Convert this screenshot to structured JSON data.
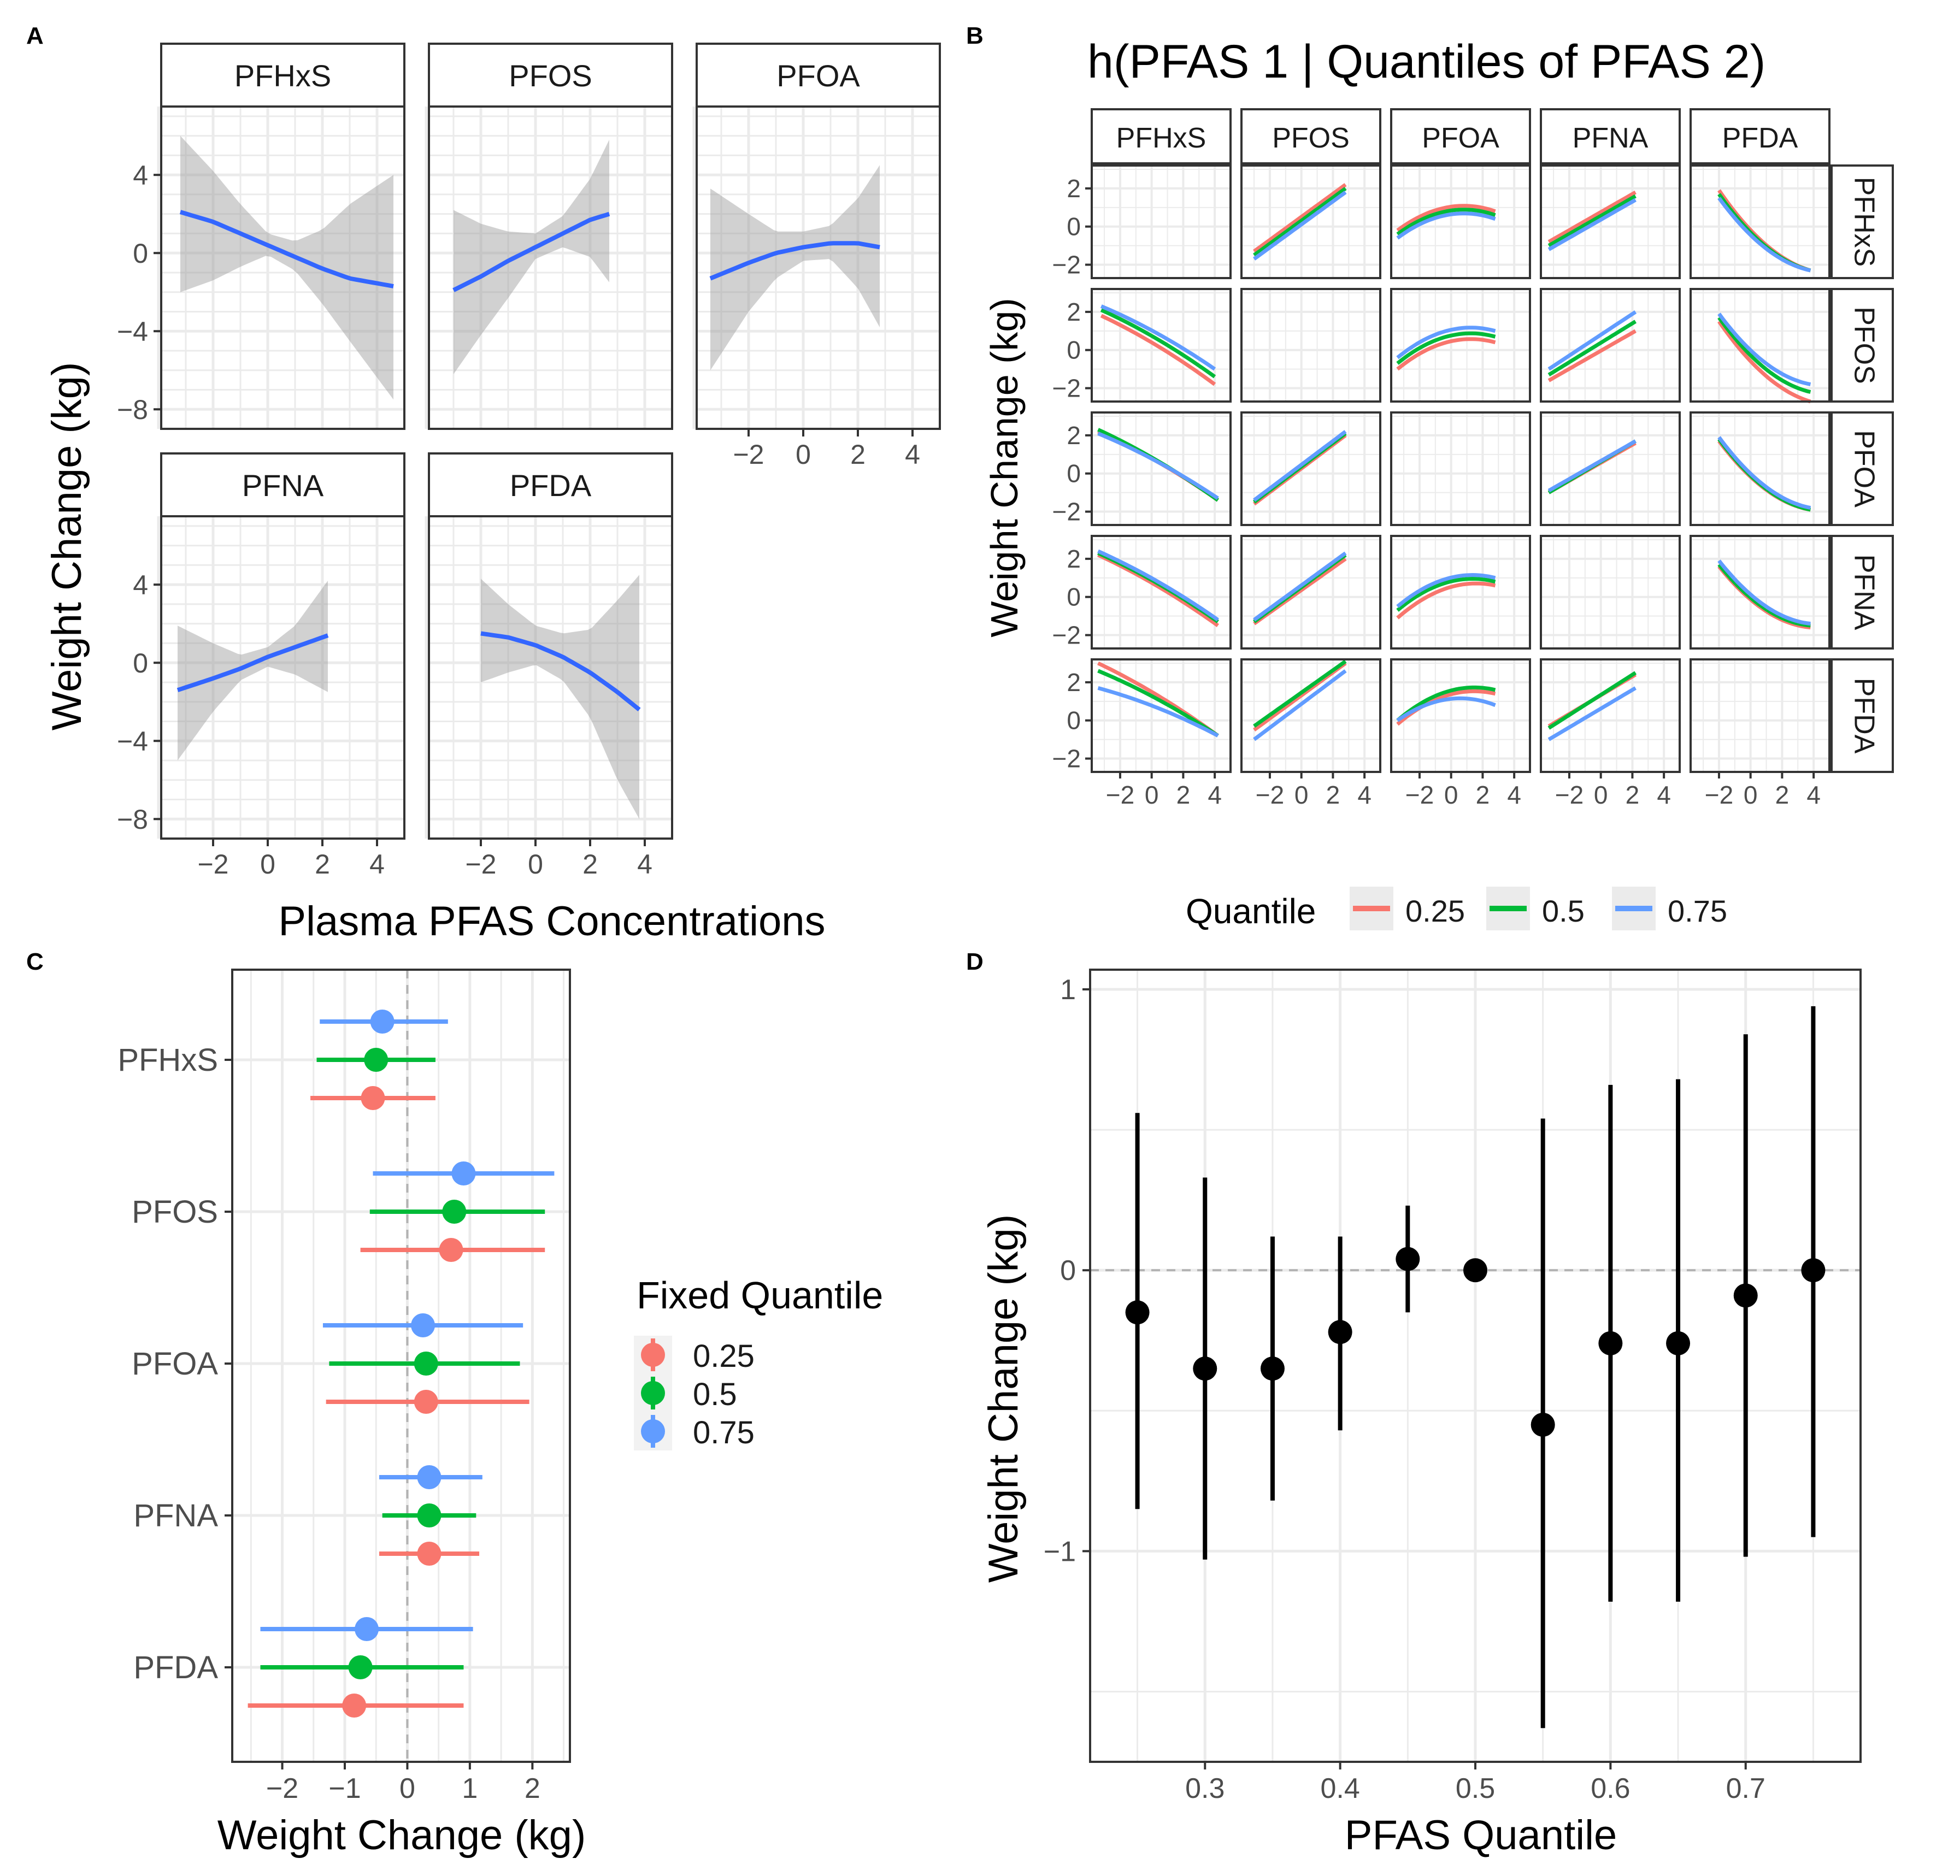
{
  "panel_labels": {
    "a": "A",
    "b": "B",
    "c": "C",
    "d": "D"
  },
  "colors": {
    "blue_line": "#3366ff",
    "ribbon": "#c4c4c4",
    "q25": "#f8766d",
    "q50": "#00ba38",
    "q75": "#619cff",
    "grid": "#ebebeb",
    "strip": "#ffffff"
  },
  "chart_data": [
    {
      "id": "A",
      "type": "line",
      "title": "",
      "xlabel": "Plasma PFAS Concentrations",
      "ylabel": "Weight Change (kg)",
      "ylim": [
        -9,
        7.5
      ],
      "xlim": [
        -3.9,
        5
      ],
      "yticks": [
        "4",
        "0",
        "−4",
        "−8"
      ],
      "xticks": [
        "−2",
        "0",
        "2",
        "4"
      ],
      "facets": [
        {
          "name": "PFHxS",
          "x": [
            -3.2,
            -2,
            -1,
            0,
            1,
            2,
            3,
            4.6
          ],
          "y": [
            2.1,
            1.6,
            1.0,
            0.4,
            -0.2,
            -0.8,
            -1.3,
            -1.7
          ],
          "lower": [
            -2.0,
            -1.4,
            -0.7,
            -0.1,
            -0.9,
            -2.6,
            -4.5,
            -7.5
          ],
          "upper": [
            6.0,
            4.2,
            2.5,
            1.0,
            0.6,
            1.2,
            2.5,
            4.0
          ]
        },
        {
          "name": "PFOS",
          "x": [
            -3.0,
            -2,
            -1,
            0,
            1,
            2,
            2.7
          ],
          "y": [
            -1.9,
            -1.2,
            -0.4,
            0.3,
            1.0,
            1.7,
            2.0
          ],
          "lower": [
            -6.2,
            -4.2,
            -2.3,
            -0.3,
            0.3,
            -0.2,
            -1.5
          ],
          "upper": [
            2.2,
            1.5,
            1.1,
            1.0,
            1.9,
            3.8,
            5.8
          ]
        },
        {
          "name": "PFOA",
          "x": [
            -3.4,
            -2,
            -1,
            0,
            1,
            2,
            2.8
          ],
          "y": [
            -1.3,
            -0.5,
            0.0,
            0.3,
            0.5,
            0.5,
            0.3
          ],
          "lower": [
            -6.0,
            -3.0,
            -1.3,
            -0.4,
            -0.3,
            -1.8,
            -3.8
          ],
          "upper": [
            3.3,
            2.0,
            1.1,
            1.1,
            1.4,
            2.8,
            4.5
          ]
        },
        {
          "name": "PFNA",
          "x": [
            -3.3,
            -2,
            -1,
            0,
            1,
            2.2
          ],
          "y": [
            -1.4,
            -0.8,
            -0.3,
            0.3,
            0.8,
            1.4
          ],
          "lower": [
            -5.0,
            -2.5,
            -0.9,
            -0.2,
            -0.6,
            -1.5
          ],
          "upper": [
            1.9,
            1.0,
            0.4,
            0.8,
            1.9,
            4.2
          ]
        },
        {
          "name": "PFDA",
          "x": [
            -2.0,
            -1,
            0,
            1,
            2,
            3,
            3.8
          ],
          "y": [
            1.5,
            1.3,
            0.9,
            0.3,
            -0.5,
            -1.5,
            -2.4
          ],
          "lower": [
            -1.0,
            -0.5,
            -0.1,
            -0.9,
            -2.8,
            -6.0,
            -8.0
          ],
          "upper": [
            4.3,
            3.0,
            1.9,
            1.5,
            1.7,
            3.2,
            4.5
          ]
        }
      ]
    },
    {
      "id": "B",
      "type": "line",
      "title": "h(PFAS 1 | Quantiles of PFAS 2)",
      "xlabel": "",
      "ylabel": "Weight Change (kg)",
      "ylim": [
        -2.7,
        3.2
      ],
      "xlim": [
        -3.8,
        5
      ],
      "yticks": [
        "2",
        "0",
        "−2"
      ],
      "xticks": [
        "−2",
        "0",
        "2",
        "4"
      ],
      "col_facets": [
        "PFHxS",
        "PFOS",
        "PFOA",
        "PFNA",
        "PFDA"
      ],
      "row_facets": [
        "PFHxS",
        "PFOS",
        "PFOA",
        "PFNA",
        "PFDA"
      ],
      "legend": {
        "title": "Quantile",
        "entries": [
          "0.25",
          "0.5",
          "0.75"
        ]
      },
      "curves": {
        "PFOS|PFHxS": {
          "x": [
            -3.0,
            2.8
          ],
          "q25": [
            -1.3,
            2.2
          ],
          "q50": [
            -1.5,
            2.0
          ],
          "q75": [
            -1.7,
            1.8
          ],
          "shape": 0
        },
        "PFOA|PFHxS": {
          "x": [
            -3.4,
            2.8
          ],
          "q25": [
            -0.2,
            0.8
          ],
          "q50": [
            -0.4,
            0.6
          ],
          "q75": [
            -0.6,
            0.4
          ],
          "shape": 0.35
        },
        "PFNA|PFHxS": {
          "x": [
            -3.3,
            2.2
          ],
          "q25": [
            -0.8,
            1.8
          ],
          "q50": [
            -1.0,
            1.6
          ],
          "q75": [
            -1.2,
            1.4
          ],
          "shape": 0
        },
        "PFDA|PFHxS": {
          "x": [
            -2.0,
            3.8
          ],
          "q25": [
            1.9,
            -2.3
          ],
          "q50": [
            1.7,
            -2.3
          ],
          "q75": [
            1.5,
            -2.3
          ],
          "shape": -0.35
        },
        "PFHxS|PFOS": {
          "x": [
            -3.2,
            4.0
          ],
          "q25": [
            1.8,
            -1.8
          ],
          "q50": [
            2.1,
            -1.4
          ],
          "q75": [
            2.3,
            -1.0
          ],
          "shape": 0.1
        },
        "PFOA|PFOS": {
          "x": [
            -3.4,
            2.8
          ],
          "q25": [
            -1.0,
            0.4
          ],
          "q50": [
            -0.7,
            0.7
          ],
          "q75": [
            -0.4,
            1.0
          ],
          "shape": 0.35
        },
        "PFNA|PFOS": {
          "x": [
            -3.3,
            2.2
          ],
          "q25": [
            -1.6,
            1.0
          ],
          "q50": [
            -1.3,
            1.5
          ],
          "q75": [
            -1.0,
            2.0
          ],
          "shape": 0
        },
        "PFDA|PFOS": {
          "x": [
            -2.0,
            3.8
          ],
          "q25": [
            1.5,
            -2.7
          ],
          "q50": [
            1.7,
            -2.2
          ],
          "q75": [
            1.9,
            -1.8
          ],
          "shape": -0.35
        },
        "PFHxS|PFOA": {
          "x": [
            -3.4,
            4.2
          ],
          "q25": [
            2.2,
            -1.4
          ],
          "q50": [
            2.3,
            -1.4
          ],
          "q75": [
            2.1,
            -1.3
          ],
          "shape": 0.1
        },
        "PFOS|PFOA": {
          "x": [
            -3.0,
            2.8
          ],
          "q25": [
            -1.6,
            2.0
          ],
          "q50": [
            -1.5,
            2.1
          ],
          "q75": [
            -1.4,
            2.2
          ],
          "shape": 0
        },
        "PFNA|PFOA": {
          "x": [
            -3.3,
            2.2
          ],
          "q25": [
            -1.0,
            1.6
          ],
          "q50": [
            -1.0,
            1.7
          ],
          "q75": [
            -0.9,
            1.7
          ],
          "shape": 0
        },
        "PFDA|PFOA": {
          "x": [
            -2.0,
            3.8
          ],
          "q25": [
            1.7,
            -1.9
          ],
          "q50": [
            1.8,
            -1.9
          ],
          "q75": [
            1.9,
            -1.8
          ],
          "shape": -0.35
        },
        "PFHxS|PFNA": {
          "x": [
            -3.4,
            4.2
          ],
          "q25": [
            2.2,
            -1.5
          ],
          "q50": [
            2.3,
            -1.3
          ],
          "q75": [
            2.4,
            -1.2
          ],
          "shape": 0.1
        },
        "PFOS|PFNA": {
          "x": [
            -3.0,
            2.8
          ],
          "q25": [
            -1.4,
            2.0
          ],
          "q50": [
            -1.3,
            2.2
          ],
          "q75": [
            -1.2,
            2.3
          ],
          "shape": 0
        },
        "PFOA|PFNA": {
          "x": [
            -3.4,
            2.8
          ],
          "q25": [
            -1.1,
            0.6
          ],
          "q50": [
            -0.7,
            0.8
          ],
          "q75": [
            -0.5,
            1.0
          ],
          "shape": 0.35
        },
        "PFDA|PFNA": {
          "x": [
            -2.0,
            3.8
          ],
          "q25": [
            1.6,
            -1.6
          ],
          "q50": [
            1.7,
            -1.5
          ],
          "q75": [
            1.9,
            -1.4
          ],
          "shape": -0.35
        },
        "PFHxS|PFDA": {
          "x": [
            -3.4,
            4.2
          ],
          "q25": [
            3.0,
            -0.8
          ],
          "q50": [
            2.6,
            -0.8
          ],
          "q75": [
            1.7,
            -0.8
          ],
          "shape": 0.1
        },
        "PFOS|PFDA": {
          "x": [
            -3.0,
            2.8
          ],
          "q25": [
            -0.5,
            3.0
          ],
          "q50": [
            -0.3,
            3.1
          ],
          "q75": [
            -1.0,
            2.6
          ],
          "shape": 0
        },
        "PFOA|PFDA": {
          "x": [
            -3.4,
            2.8
          ],
          "q25": [
            -0.2,
            1.4
          ],
          "q50": [
            0.0,
            1.6
          ],
          "q75": [
            0.0,
            0.8
          ],
          "shape": 0.35
        },
        "PFNA|PFDA": {
          "x": [
            -3.3,
            2.2
          ],
          "q25": [
            -0.3,
            2.4
          ],
          "q50": [
            -0.4,
            2.5
          ],
          "q75": [
            -1.0,
            1.7
          ],
          "shape": 0
        }
      }
    },
    {
      "id": "C",
      "type": "scatter",
      "title": "",
      "xlabel": "Weight Change (kg)",
      "ylabel": "",
      "xlim": [
        -2.8,
        2.6
      ],
      "xticks": [
        "−2",
        "−1",
        "0",
        "1",
        "2"
      ],
      "legend": {
        "title": "Fixed Quantile",
        "entries": [
          "0.25",
          "0.5",
          "0.75"
        ]
      },
      "categories": [
        "PFHxS",
        "PFOS",
        "PFOA",
        "PFNA",
        "PFDA"
      ],
      "series": [
        {
          "name": "0.25",
          "est": [
            -0.55,
            0.7,
            0.3,
            0.35,
            -0.85
          ],
          "lo": [
            -1.55,
            -0.75,
            -1.3,
            -0.45,
            -2.55
          ],
          "hi": [
            0.45,
            2.2,
            1.95,
            1.15,
            0.9
          ]
        },
        {
          "name": "0.5",
          "est": [
            -0.5,
            0.75,
            0.3,
            0.35,
            -0.75
          ],
          "lo": [
            -1.45,
            -0.6,
            -1.25,
            -0.4,
            -2.35
          ],
          "hi": [
            0.45,
            2.2,
            1.8,
            1.1,
            0.9
          ]
        },
        {
          "name": "0.75",
          "est": [
            -0.4,
            0.9,
            0.25,
            0.35,
            -0.65
          ],
          "lo": [
            -1.4,
            -0.55,
            -1.35,
            -0.45,
            -2.35
          ],
          "hi": [
            0.65,
            2.35,
            1.85,
            1.2,
            1.05
          ]
        }
      ]
    },
    {
      "id": "D",
      "type": "scatter",
      "title": "",
      "xlabel": "PFAS Quantile",
      "ylabel": "Weight Change (kg)",
      "xlim": [
        0.215,
        0.785
      ],
      "ylim": [
        -1.75,
        1.07
      ],
      "xticks": [
        "0.3",
        "0.4",
        "0.5",
        "0.6",
        "0.7"
      ],
      "yticks": [
        "1",
        "0",
        "−1"
      ],
      "x": [
        0.25,
        0.3,
        0.35,
        0.4,
        0.45,
        0.5,
        0.55,
        0.6,
        0.65,
        0.7,
        0.75
      ],
      "est": [
        -0.15,
        -0.35,
        -0.35,
        -0.22,
        0.04,
        0.0,
        -0.55,
        -0.26,
        -0.26,
        -0.09,
        0.0
      ],
      "lo": [
        -0.85,
        -1.03,
        -0.82,
        -0.57,
        -0.15,
        0.0,
        -1.63,
        -1.18,
        -1.18,
        -1.02,
        -0.95
      ],
      "hi": [
        0.56,
        0.33,
        0.12,
        0.12,
        0.23,
        0.0,
        0.54,
        0.66,
        0.68,
        0.84,
        0.94
      ]
    }
  ]
}
